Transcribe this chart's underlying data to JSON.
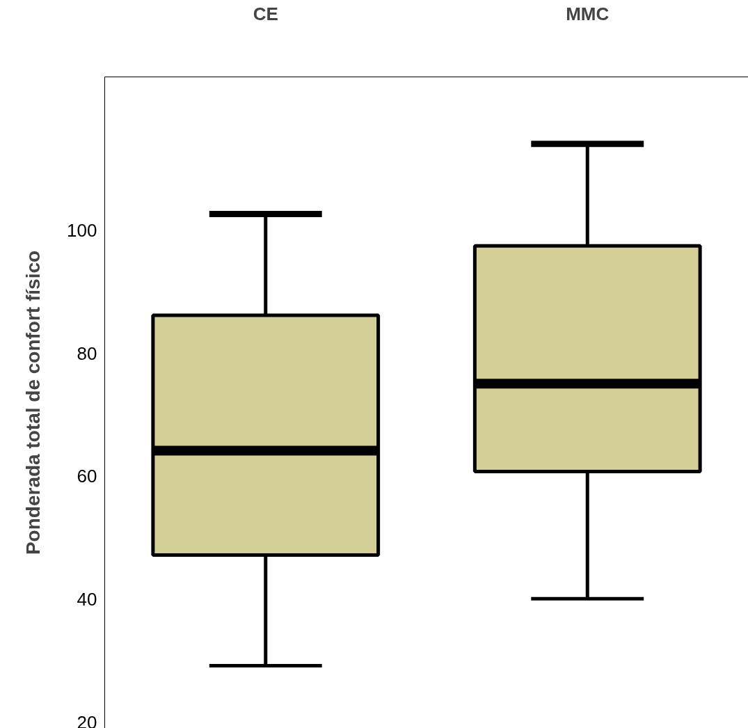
{
  "chart_data": {
    "type": "box",
    "ylabel": "Ponderada total de confort físico",
    "categories": [
      "CE",
      "MMC"
    ],
    "boxes": [
      {
        "low": 29.2,
        "q1": 47.2,
        "median": 64.2,
        "q3": 86.2,
        "high": 102.7
      },
      {
        "low": 40.1,
        "q1": 60.8,
        "median": 75.1,
        "q3": 97.5,
        "high": 114.1
      }
    ],
    "color": "#d4ce97",
    "ylim": [
      19,
      125
    ],
    "yticks": [
      20,
      40,
      60,
      80,
      100
    ],
    "grid": false
  }
}
